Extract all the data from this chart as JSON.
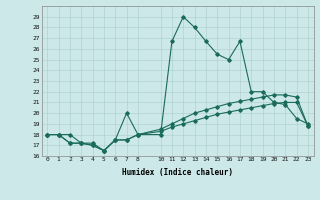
{
  "title": "",
  "xlabel": "Humidex (Indice chaleur)",
  "bg_color": "#cce8e8",
  "line_color": "#1a6b5a",
  "xlim": [
    -0.5,
    23.5
  ],
  "ylim": [
    16,
    30
  ],
  "xticks": [
    0,
    1,
    2,
    3,
    4,
    5,
    6,
    7,
    8,
    10,
    11,
    12,
    13,
    14,
    15,
    16,
    17,
    18,
    19,
    20,
    21,
    22,
    23
  ],
  "yticks": [
    16,
    17,
    18,
    19,
    20,
    21,
    22,
    23,
    24,
    25,
    26,
    27,
    28,
    29
  ],
  "series": [
    {
      "x": [
        0,
        1,
        2,
        3,
        4,
        5,
        6,
        7,
        8,
        10,
        11,
        12,
        13,
        14,
        15,
        16,
        17,
        18,
        19,
        20,
        21,
        22,
        23
      ],
      "y": [
        18,
        18,
        18,
        17.2,
        17.2,
        16.5,
        17.5,
        20,
        18,
        18,
        26.7,
        29,
        28,
        26.7,
        25.5,
        25,
        26.7,
        22,
        22,
        21,
        20.8,
        19.5,
        19
      ]
    },
    {
      "x": [
        0,
        1,
        2,
        3,
        4,
        5,
        6,
        7,
        8,
        10,
        11,
        12,
        13,
        14,
        15,
        16,
        17,
        18,
        19,
        20,
        21,
        22,
        23
      ],
      "y": [
        18,
        18,
        17.2,
        17.2,
        17.0,
        16.5,
        17.5,
        17.5,
        18,
        18.3,
        18.7,
        19.0,
        19.3,
        19.6,
        19.9,
        20.1,
        20.3,
        20.5,
        20.7,
        20.9,
        21.0,
        21.0,
        18.8
      ]
    },
    {
      "x": [
        0,
        1,
        2,
        3,
        4,
        5,
        6,
        7,
        8,
        10,
        11,
        12,
        13,
        14,
        15,
        16,
        17,
        18,
        19,
        20,
        21,
        22,
        23
      ],
      "y": [
        18,
        18,
        17.2,
        17.2,
        17.0,
        16.5,
        17.5,
        17.5,
        18,
        18.5,
        19.0,
        19.5,
        20.0,
        20.3,
        20.6,
        20.9,
        21.1,
        21.3,
        21.5,
        21.7,
        21.7,
        21.5,
        18.8
      ]
    }
  ]
}
